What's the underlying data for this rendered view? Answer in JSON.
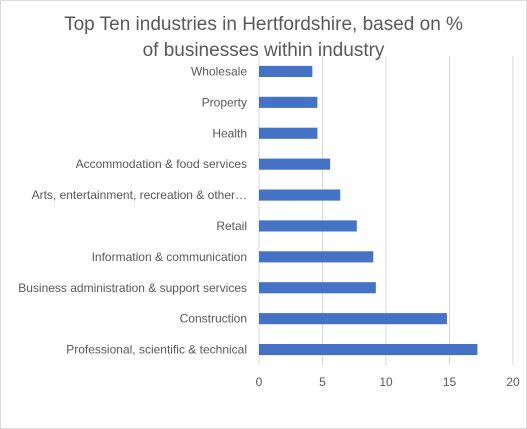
{
  "chart_data": {
    "type": "bar",
    "orientation": "horizontal",
    "title_lines": [
      "Top Ten industries in Hertfordshire, based on %",
      "of businesses  within industry"
    ],
    "categories": [
      "Wholesale",
      "Property",
      "Health",
      "Accommodation & food services",
      "Arts, entertainment, recreation & other…",
      "Retail",
      "Information & communication",
      "Business administration & support services",
      "Construction",
      "Professional, scientific & technical"
    ],
    "values": [
      4.2,
      4.6,
      4.6,
      5.6,
      6.4,
      7.7,
      9.0,
      9.2,
      14.8,
      17.2
    ],
    "xlim": [
      0,
      20
    ],
    "xticks": [
      "0",
      "5",
      "10",
      "15",
      "20"
    ],
    "grid": "vertical",
    "bar_color": "#4472c4",
    "legend": "none"
  }
}
